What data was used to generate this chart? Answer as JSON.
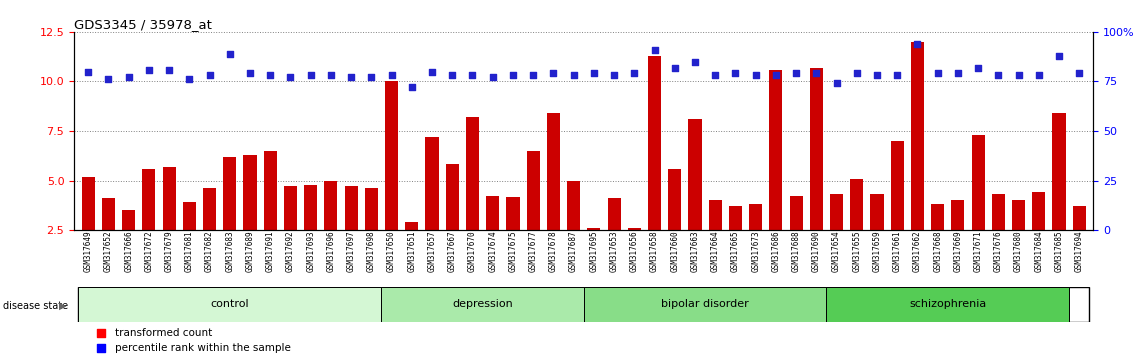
{
  "title": "GDS3345 / 35978_at",
  "samples": [
    "GSM317649",
    "GSM317652",
    "GSM317666",
    "GSM317672",
    "GSM317679",
    "GSM317681",
    "GSM317682",
    "GSM317683",
    "GSM317689",
    "GSM317691",
    "GSM317692",
    "GSM317693",
    "GSM317696",
    "GSM317697",
    "GSM317698",
    "GSM317650",
    "GSM317651",
    "GSM317657",
    "GSM317667",
    "GSM317670",
    "GSM317674",
    "GSM317675",
    "GSM317677",
    "GSM317678",
    "GSM317687",
    "GSM317695",
    "GSM317653",
    "GSM317656",
    "GSM317658",
    "GSM317660",
    "GSM317663",
    "GSM317664",
    "GSM317665",
    "GSM317673",
    "GSM317686",
    "GSM317688",
    "GSM317690",
    "GSM317654",
    "GSM317655",
    "GSM317659",
    "GSM317661",
    "GSM317662",
    "GSM317668",
    "GSM317669",
    "GSM317671",
    "GSM317676",
    "GSM317680",
    "GSM317684",
    "GSM317685",
    "GSM317694"
  ],
  "red_values": [
    5.2,
    4.1,
    3.5,
    5.6,
    5.7,
    3.9,
    4.6,
    6.2,
    6.3,
    6.5,
    4.7,
    4.8,
    5.0,
    4.7,
    4.6,
    10.0,
    2.9,
    7.2,
    5.85,
    8.2,
    4.2,
    4.15,
    6.5,
    8.4,
    5.0,
    2.6,
    4.1,
    2.6,
    11.3,
    5.6,
    8.1,
    4.0,
    3.7,
    3.8,
    10.6,
    4.2,
    10.7,
    4.3,
    5.1,
    4.3,
    7.0,
    12.0,
    3.8,
    4.0,
    7.3,
    4.3,
    4.0,
    4.4,
    8.4,
    3.7
  ],
  "blue_pct": [
    80,
    76,
    77,
    81,
    81,
    76,
    78,
    89,
    79,
    78,
    77,
    78,
    78,
    77,
    77,
    78,
    72,
    80,
    78,
    78,
    77,
    78,
    78,
    79,
    78,
    79,
    78,
    79,
    91,
    82,
    85,
    78,
    79,
    78,
    78,
    79,
    79,
    74,
    79,
    78,
    78,
    94,
    79,
    79,
    82,
    78,
    78,
    78,
    88,
    79
  ],
  "groups": [
    {
      "label": "control",
      "start": 0,
      "end": 15,
      "color": "#d4f7d4"
    },
    {
      "label": "depression",
      "start": 15,
      "end": 25,
      "color": "#aaeaaa"
    },
    {
      "label": "bipolar disorder",
      "start": 25,
      "end": 37,
      "color": "#88dd88"
    },
    {
      "label": "schizophrenia",
      "start": 37,
      "end": 49,
      "color": "#55cc55"
    }
  ],
  "ylim_left": [
    2.5,
    12.5
  ],
  "ylim_right": [
    0,
    100
  ],
  "yticks_left": [
    2.5,
    5.0,
    7.5,
    10.0,
    12.5
  ],
  "yticks_right": [
    0,
    25,
    50,
    75,
    100
  ],
  "bar_color": "#cc0000",
  "dot_color": "#2222cc",
  "bar_width": 0.65,
  "ybase": 2.5
}
